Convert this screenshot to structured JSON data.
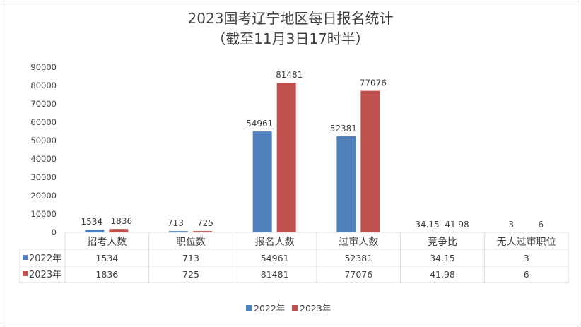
{
  "chart_data": {
    "type": "bar",
    "title": "2023国考辽宁地区每日报名统计",
    "subtitle": "（截至11月3日17时半）",
    "categories": [
      "招考人数",
      "职位数",
      "报名人数",
      "过审人数",
      "竞争比",
      "无人过审职位"
    ],
    "series": [
      {
        "name": "2022年",
        "color": "#4f81bd",
        "values": [
          1534,
          713,
          54961,
          52381,
          34.15,
          3
        ]
      },
      {
        "name": "2023年",
        "color": "#c0504d",
        "values": [
          1836,
          725,
          81481,
          77076,
          41.98,
          6
        ]
      }
    ],
    "data_labels": [
      [
        "1534",
        "713",
        "54961",
        "52381",
        "34.15",
        "3"
      ],
      [
        "1836",
        "725",
        "81481",
        "77076",
        "41.98",
        "6"
      ]
    ],
    "yticks": [
      "0",
      "10000",
      "20000",
      "30000",
      "40000",
      "50000",
      "60000",
      "70000",
      "80000",
      "90000"
    ],
    "ylim": [
      0,
      90000
    ],
    "grid": false,
    "data_table": true,
    "legend": "bottom"
  }
}
